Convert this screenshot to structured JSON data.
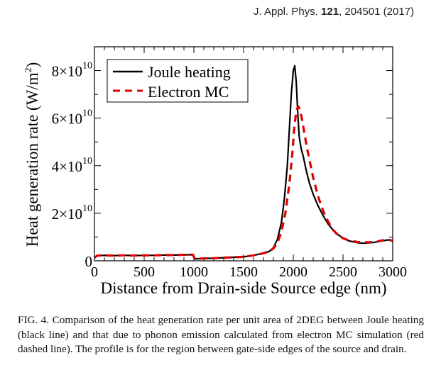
{
  "header": {
    "journal": "J. Appl. Phys.",
    "volume": "121",
    "rest": ", 204501 (2017)"
  },
  "chart_data": {
    "type": "line",
    "xlabel": "Distance from Drain-side Source edge (nm)",
    "ylabel": "Heat generation rate (W/m",
    "ylabel_sup": "2",
    "ylabel_end": ")",
    "xlim": [
      0,
      3000
    ],
    "ylim": [
      0,
      90000000000
    ],
    "x_ticks": [
      {
        "value": 0,
        "label": "0"
      },
      {
        "value": 500,
        "label": "500"
      },
      {
        "value": 1000,
        "label": "1000"
      },
      {
        "value": 1500,
        "label": "1500"
      },
      {
        "value": 2000,
        "label": "2000"
      },
      {
        "value": 2500,
        "label": "2500"
      },
      {
        "value": 3000,
        "label": "3000"
      }
    ],
    "y_ticks": [
      {
        "value": 0,
        "base": "0",
        "exp": ""
      },
      {
        "value": 20000000000,
        "base": "2×10",
        "exp": "10"
      },
      {
        "value": 40000000000,
        "base": "4×10",
        "exp": "10"
      },
      {
        "value": 60000000000,
        "base": "6×10",
        "exp": "10"
      },
      {
        "value": 80000000000,
        "base": "8×10",
        "exp": "10"
      }
    ],
    "legend_position": "top-left",
    "series": [
      {
        "name": "Joule heating",
        "color": "#000000",
        "dash": "solid",
        "x": [
          0,
          30,
          100,
          200,
          300,
          400,
          500,
          600,
          700,
          800,
          900,
          990,
          1010,
          1100,
          1200,
          1300,
          1400,
          1500,
          1600,
          1700,
          1760,
          1800,
          1840,
          1880,
          1910,
          1940,
          1960,
          1980,
          2000,
          2015,
          2030,
          2045,
          2060,
          2080,
          2100,
          2130,
          2160,
          2200,
          2250,
          2300,
          2350,
          2400,
          2450,
          2500,
          2550,
          2600,
          2650,
          2700,
          2750,
          2800,
          2850,
          2900,
          2950,
          3000
        ],
        "y": [
          1300000000.0,
          2200000000.0,
          2300000000.0,
          2200000000.0,
          2300000000.0,
          2200000000.0,
          2300000000.0,
          2300000000.0,
          2400000000.0,
          2400000000.0,
          2500000000.0,
          2600000000.0,
          800000000.0,
          1000000000.0,
          1100000000.0,
          1300000000.0,
          1500000000.0,
          1700000000.0,
          2300000000.0,
          3200000000.0,
          4000000000.0,
          5500000000.0,
          9000000000.0,
          16000000000.0,
          26000000000.0,
          40000000000.0,
          55000000000.0,
          70000000000.0,
          80000000000.0,
          82000000000.0,
          75000000000.0,
          62000000000.0,
          52000000000.0,
          47000000000.0,
          44000000000.0,
          38000000000.0,
          33000000000.0,
          28000000000.0,
          23000000000.0,
          19000000000.0,
          15500000000.0,
          13000000000.0,
          11000000000.0,
          9500000000.0,
          8500000000.0,
          8000000000.0,
          7600000000.0,
          7400000000.0,
          7500000000.0,
          7700000000.0,
          8000000000.0,
          8400000000.0,
          8800000000.0,
          8400000000.0
        ]
      },
      {
        "name": "Electron MC",
        "color": "#e00000",
        "dash": "dashed",
        "x": [
          0,
          30,
          100,
          200,
          300,
          400,
          500,
          600,
          700,
          800,
          900,
          990,
          1010,
          1100,
          1200,
          1300,
          1400,
          1500,
          1600,
          1700,
          1760,
          1800,
          1840,
          1880,
          1920,
          1960,
          1990,
          2010,
          2030,
          2050,
          2070,
          2090,
          2110,
          2140,
          2170,
          2200,
          2250,
          2300,
          2350,
          2400,
          2450,
          2500,
          2550,
          2600,
          2650,
          2700,
          2750,
          2800,
          2850,
          2900,
          2950,
          3000
        ],
        "y": [
          1300000000.0,
          2200000000.0,
          2300000000.0,
          2200000000.0,
          2300000000.0,
          2200000000.0,
          2300000000.0,
          2300000000.0,
          2400000000.0,
          2400000000.0,
          2500000000.0,
          2600000000.0,
          800000000.0,
          1000000000.0,
          1100000000.0,
          1300000000.0,
          1500000000.0,
          1700000000.0,
          2300000000.0,
          3200000000.0,
          4000000000.0,
          5200000000.0,
          7500000000.0,
          12000000000.0,
          20000000000.0,
          32000000000.0,
          45000000000.0,
          56000000000.0,
          63000000000.0,
          65000000000.0,
          63000000000.0,
          59000000000.0,
          54000000000.0,
          47000000000.0,
          41000000000.0,
          35000000000.0,
          27000000000.0,
          21000000000.0,
          16500000000.0,
          13000000000.0,
          10800000000.0,
          9500000000.0,
          8700000000.0,
          8200000000.0,
          7900000000.0,
          7800000000.0,
          7800000000.0,
          7900000000.0,
          8200000000.0,
          8600000000.0,
          9000000000.0,
          8400000000.0
        ]
      }
    ]
  },
  "caption": "FIG. 4. Comparison of the heat generation rate per unit area of 2DEG between Joule heating (black line) and that due to phonon emission calculated from electron MC simulation (red dashed line). The profile is for the region between gate-side edges of the source and drain."
}
